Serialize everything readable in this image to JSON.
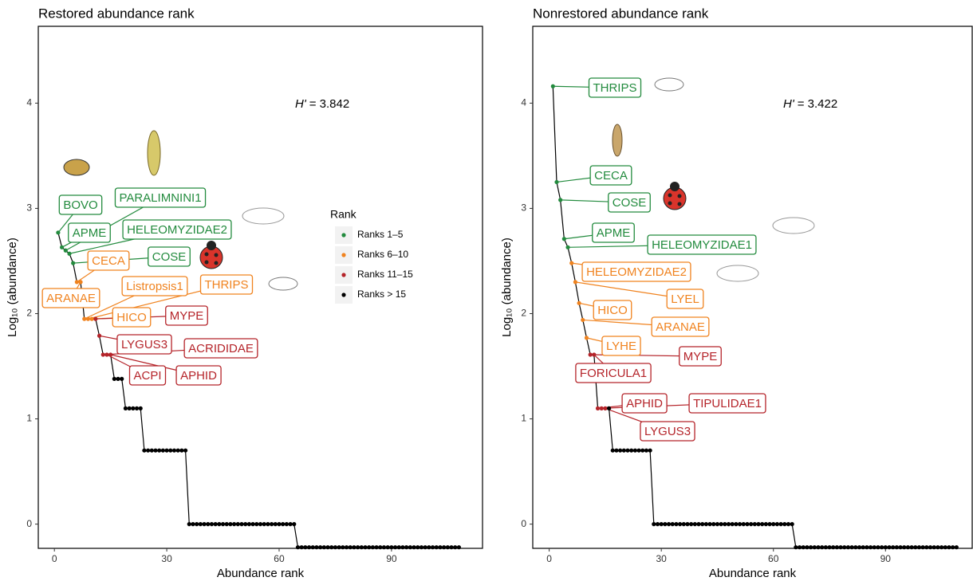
{
  "chart_data": [
    {
      "type": "scatter",
      "title": "Restored abundance rank",
      "xlabel": "Abundance rank",
      "ylabel": "Log₁₀ (abundance)",
      "annotation_symbol": "H'",
      "annotation_text": "= 3.842",
      "xlim": [
        -4.3,
        114.3
      ],
      "xticks": [
        0,
        30,
        60,
        90
      ],
      "ylim": [
        -0.23,
        4.73
      ],
      "yticks": [
        0,
        1,
        2,
        3,
        4
      ],
      "grid": false,
      "legend": true,
      "legend_title": "Rank",
      "series": [
        {
          "name": "Ranks 1–5",
          "color": "#238b3e",
          "x": [
            1,
            2,
            3,
            4,
            5
          ],
          "values": [
            2.77,
            2.63,
            2.6,
            2.57,
            2.48
          ],
          "labels": [
            "BOVO",
            "APME",
            "PARALIMNINI1",
            "HELEOMYZIDAE2",
            "COSE"
          ]
        },
        {
          "name": "Ranks 6–10",
          "color": "#f0831f",
          "x": [
            6,
            7,
            8,
            9,
            10
          ],
          "values": [
            2.3,
            2.3,
            1.95,
            1.95,
            1.95
          ],
          "labels": [
            "CECA",
            "ARANAE",
            "Listropsis1",
            "THRIPS",
            "HICO"
          ]
        },
        {
          "name": "Ranks 11–15",
          "color": "#b5242a",
          "x": [
            11,
            12,
            13,
            14,
            15
          ],
          "values": [
            1.95,
            1.79,
            1.61,
            1.61,
            1.61
          ],
          "labels": [
            "MYPE",
            "LYGUS3",
            "ACRIDIDAE",
            "ACPI",
            "APHID"
          ]
        },
        {
          "name": "Ranks > 15",
          "color": "#000000",
          "x": [
            16,
            17,
            18,
            19,
            20,
            21,
            22,
            23,
            24,
            25,
            26,
            27,
            28,
            29,
            30,
            31,
            32,
            33,
            34,
            35,
            36,
            37,
            38,
            39,
            40,
            41,
            42,
            43,
            44,
            45,
            46,
            47,
            48,
            49,
            50,
            51,
            52,
            53,
            54,
            55,
            56,
            57,
            58,
            59,
            60,
            61,
            62,
            63,
            64,
            65,
            66,
            67,
            68,
            69,
            70,
            71,
            72,
            73,
            74,
            75,
            76,
            77,
            78,
            79,
            80,
            81,
            82,
            83,
            84,
            85,
            86,
            87,
            88,
            89,
            90,
            91,
            92,
            93,
            94,
            95,
            96,
            97,
            98,
            99,
            100,
            101,
            102,
            103,
            104,
            105,
            106,
            107,
            108
          ],
          "values": [
            1.38,
            1.38,
            1.38,
            1.1,
            1.1,
            1.1,
            1.1,
            1.1,
            0.7,
            0.7,
            0.7,
            0.7,
            0.7,
            0.7,
            0.7,
            0.7,
            0.7,
            0.7,
            0.7,
            0.7,
            0,
            0,
            0,
            0,
            0,
            0,
            0,
            0,
            0,
            0,
            0,
            0,
            0,
            0,
            0,
            0,
            0,
            0,
            0,
            0,
            0,
            0,
            0,
            0,
            0,
            0,
            0,
            0,
            0,
            -0.22,
            -0.22,
            -0.22,
            -0.22,
            -0.22,
            -0.22,
            -0.22,
            -0.22,
            -0.22,
            -0.22,
            -0.22,
            -0.22,
            -0.22,
            -0.22,
            -0.22,
            -0.22,
            -0.22,
            -0.22,
            -0.22,
            -0.22,
            -0.22,
            -0.22,
            -0.22,
            -0.22,
            -0.22,
            -0.22,
            -0.22,
            -0.22,
            -0.22,
            -0.22,
            -0.22,
            -0.22,
            -0.22,
            -0.22,
            -0.22,
            -0.22,
            -0.22,
            -0.22,
            -0.22,
            -0.22,
            -0.22,
            -0.22,
            -0.22,
            -0.22
          ]
        }
      ]
    },
    {
      "type": "scatter",
      "title": "Nonrestored abundance rank",
      "xlabel": "Abundance rank",
      "ylabel": "Log₁₀ (abundance)",
      "annotation_symbol": "H'",
      "annotation_text": "= 3.422",
      "xlim": [
        -4.4,
        113.2
      ],
      "xticks": [
        0,
        30,
        60,
        90
      ],
      "ylim": [
        -0.23,
        4.73
      ],
      "yticks": [
        0,
        1,
        2,
        3,
        4
      ],
      "grid": false,
      "legend": false,
      "series": [
        {
          "color": "#238b3e",
          "x": [
            1,
            2,
            3,
            4,
            5
          ],
          "values": [
            4.16,
            3.25,
            3.08,
            2.71,
            2.63
          ],
          "labels": [
            "THRIPS",
            "CECA",
            "COSE",
            "APME",
            "HELEOMYZIDAE1"
          ]
        },
        {
          "color": "#f0831f",
          "x": [
            6,
            7,
            8,
            9,
            10
          ],
          "values": [
            2.48,
            2.3,
            2.1,
            1.94,
            1.77
          ],
          "labels": [
            "HELEOMYZIDAE2",
            "LYEL",
            "HICO",
            "ARANAE",
            "LYHE"
          ]
        },
        {
          "color": "#b5242a",
          "x": [
            11,
            12,
            13,
            14,
            15
          ],
          "values": [
            1.61,
            1.61,
            1.1,
            1.1,
            1.1
          ],
          "labels": [
            "MYPE",
            "FORICULA1",
            "APHID",
            "TIPULIDAE1",
            "LYGUS3"
          ]
        },
        {
          "color": "#000000",
          "x": [
            16,
            17,
            18,
            19,
            20,
            21,
            22,
            23,
            24,
            25,
            26,
            27,
            28,
            29,
            30,
            31,
            32,
            33,
            34,
            35,
            36,
            37,
            38,
            39,
            40,
            41,
            42,
            43,
            44,
            45,
            46,
            47,
            48,
            49,
            50,
            51,
            52,
            53,
            54,
            55,
            56,
            57,
            58,
            59,
            60,
            61,
            62,
            63,
            64,
            65,
            66,
            67,
            68,
            69,
            70,
            71,
            72,
            73,
            74,
            75,
            76,
            77,
            78,
            79,
            80,
            81,
            82,
            83,
            84,
            85,
            86,
            87,
            88,
            89,
            90,
            91,
            92,
            93,
            94,
            95,
            96,
            97,
            98,
            99,
            100,
            101,
            102,
            103,
            104,
            105,
            106,
            107,
            108,
            109
          ],
          "values": [
            1.1,
            0.7,
            0.7,
            0.7,
            0.7,
            0.7,
            0.7,
            0.7,
            0.7,
            0.7,
            0.7,
            0.7,
            0,
            0,
            0,
            0,
            0,
            0,
            0,
            0,
            0,
            0,
            0,
            0,
            0,
            0,
            0,
            0,
            0,
            0,
            0,
            0,
            0,
            0,
            0,
            0,
            0,
            0,
            0,
            0,
            0,
            0,
            0,
            0,
            0,
            0,
            0,
            0,
            0,
            0,
            -0.22,
            -0.22,
            -0.22,
            -0.22,
            -0.22,
            -0.22,
            -0.22,
            -0.22,
            -0.22,
            -0.22,
            -0.22,
            -0.22,
            -0.22,
            -0.22,
            -0.22,
            -0.22,
            -0.22,
            -0.22,
            -0.22,
            -0.22,
            -0.22,
            -0.22,
            -0.22,
            -0.22,
            -0.22,
            -0.22,
            -0.22,
            -0.22,
            -0.22,
            -0.22,
            -0.22,
            -0.22,
            -0.22,
            -0.22,
            -0.22,
            -0.22,
            -0.22,
            -0.22,
            -0.22,
            -0.22,
            -0.22,
            -0.22,
            -0.22,
            -0.22
          ]
        }
      ]
    }
  ]
}
